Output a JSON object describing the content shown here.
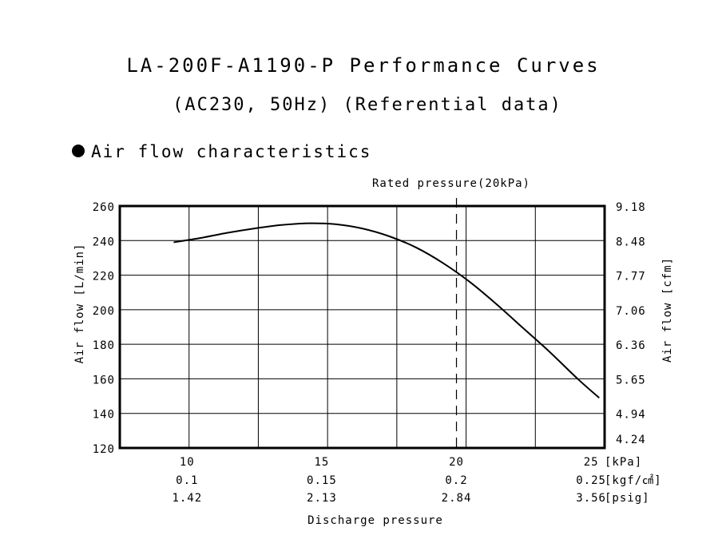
{
  "chart_data": {
    "type": "line",
    "title": "LA-200F-A1190-P Performance Curves",
    "subtitle": "(AC230, 50Hz) (Referential data)",
    "section_label": "Air flow characteristics",
    "annotation": "Rated pressure(20kPa)",
    "rated_pressure_kpa": 20,
    "xlabel": "Discharge pressure",
    "ylabel_left": "Air flow [L/min]",
    "ylabel_right": "Air flow [cfm]",
    "xlim": [
      7.5,
      25.5
    ],
    "ylim": [
      120,
      260
    ],
    "grid": true,
    "x_ticks": [
      {
        "value": 10,
        "kpa": "10",
        "kgf": "0.1",
        "psig": "1.42"
      },
      {
        "value": 15,
        "kpa": "15",
        "kgf": "0.15",
        "psig": "2.13"
      },
      {
        "value": 20,
        "kpa": "20",
        "kgf": "0.2",
        "psig": "2.84"
      },
      {
        "value": 25,
        "kpa": "25",
        "kgf": "0.25",
        "psig": "3.56"
      }
    ],
    "x_unit_labels": [
      "[kPa]",
      "[kgf/㎠]",
      "[psig]"
    ],
    "y_ticks_left": [
      "260",
      "240",
      "220",
      "200",
      "180",
      "160",
      "140",
      "120"
    ],
    "y_ticks_right": [
      "9.18",
      "8.48",
      "7.77",
      "7.06",
      "6.36",
      "5.65",
      "4.94",
      "4.24"
    ],
    "series": [
      {
        "x": [
          9.5,
          10.5,
          11.5,
          12.5,
          13.5,
          14.5,
          15.5,
          16.5,
          17.5,
          18.5,
          19.5,
          20.5,
          21.5,
          22.5,
          23.5,
          24.5,
          25.3
        ],
        "y": [
          239,
          241.5,
          244.5,
          247,
          249,
          250,
          249.5,
          247,
          242.5,
          236,
          227,
          216,
          203,
          189,
          175,
          160,
          149
        ]
      }
    ]
  }
}
